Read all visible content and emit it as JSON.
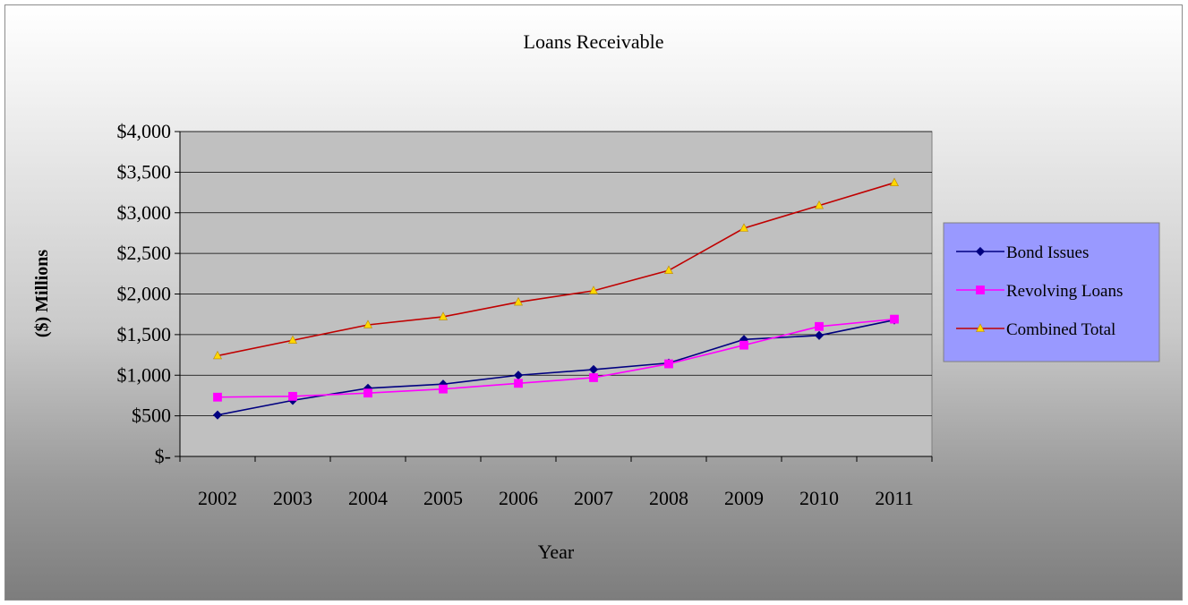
{
  "chart_data": {
    "type": "line",
    "title": "Loans Receivable",
    "xlabel": "Year",
    "ylabel": "($) Millions",
    "categories": [
      "2002",
      "2003",
      "2004",
      "2005",
      "2006",
      "2007",
      "2008",
      "2009",
      "2010",
      "2011"
    ],
    "ylim": [
      0,
      4000
    ],
    "yticks": [
      0,
      500,
      1000,
      1500,
      2000,
      2500,
      3000,
      3500,
      4000
    ],
    "ytick_labels": [
      "$-",
      "$500",
      "$1,000",
      "$1,500",
      "$2,000",
      "$2,500",
      "$3,000",
      "$3,500",
      "$4,000"
    ],
    "grid": "horizontal",
    "legend_position": "right",
    "series": [
      {
        "name": "Bond Issues",
        "color": "#000080",
        "marker": "diamond",
        "values": [
          510,
          690,
          840,
          890,
          1000,
          1070,
          1150,
          1440,
          1490,
          1680
        ]
      },
      {
        "name": "Revolving Loans",
        "color": "#ff00ff",
        "marker": "square",
        "values": [
          730,
          740,
          780,
          830,
          900,
          970,
          1140,
          1370,
          1600,
          1690
        ]
      },
      {
        "name": "Combined Total",
        "color": "#c00000",
        "marker": "triangle",
        "marker_color": "#ffd700",
        "values": [
          1240,
          1430,
          1620,
          1720,
          1900,
          2040,
          2290,
          2810,
          3090,
          3370
        ]
      }
    ]
  },
  "colors": {
    "plot_area": "#c0c0c0",
    "legend_background": "#9999ff",
    "gridline": "#000000"
  }
}
